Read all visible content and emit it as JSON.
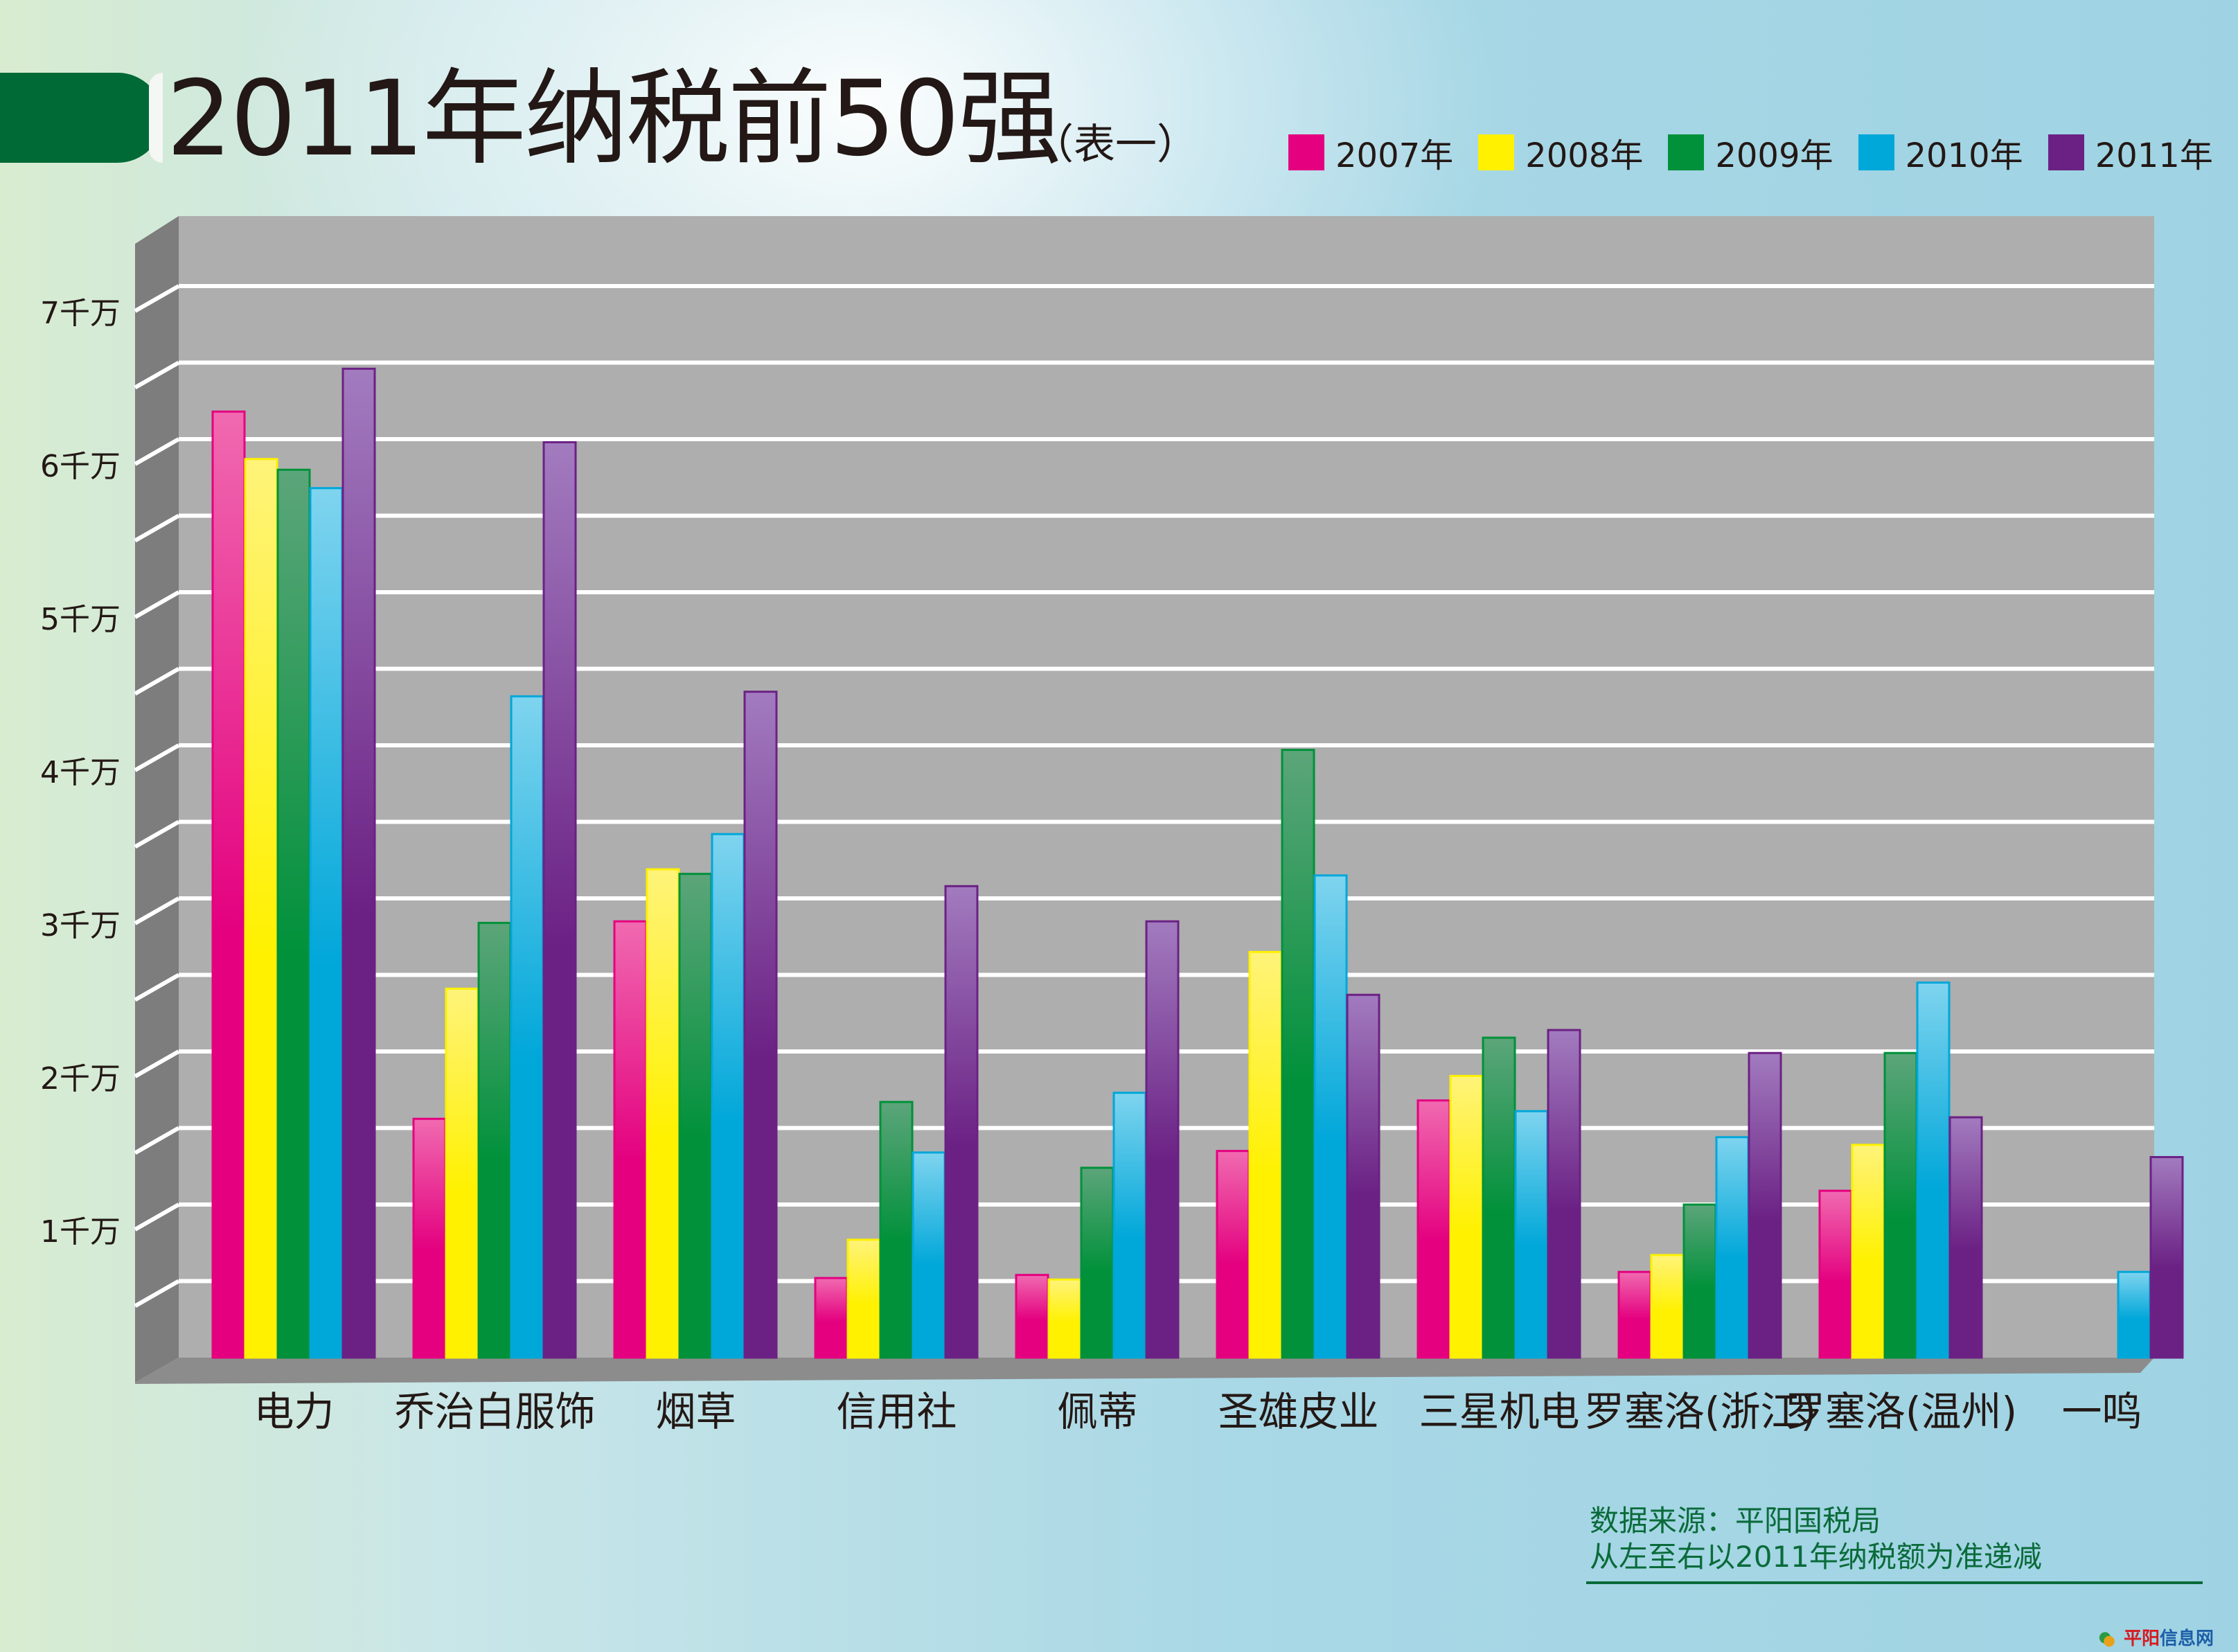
{
  "title": "2011年纳税前50强",
  "subtitle": "（表一）",
  "source_line1": "数据来源：平阳国税局",
  "source_line2": "从左至右以2011年纳税额为准递减",
  "watermark": {
    "part1": "平阳",
    "part2": "信息网"
  },
  "chart_data": {
    "type": "bar",
    "title": "2011年纳税前50强",
    "subtitle": "（表一）",
    "xlabel": "",
    "ylabel": "",
    "ylim": [
      0,
      7.5
    ],
    "yticks": [
      1,
      2,
      3,
      4,
      5,
      6,
      7
    ],
    "ytick_labels": [
      "1千万",
      "2千万",
      "3千万",
      "4千万",
      "5千万",
      "6千万",
      "7千万"
    ],
    "grid": true,
    "legend_position": "top-right",
    "categories": [
      "电力",
      "乔治白服饰",
      "烟草",
      "信用社",
      "佩蒂",
      "圣雄皮业",
      "三星机电",
      "罗塞洛(浙江)",
      "罗塞洛(温州)",
      "一鸣"
    ],
    "series": [
      {
        "name": "2007年",
        "color": "#e4007f",
        "values": [
          6.18,
          1.56,
          2.85,
          0.52,
          0.54,
          1.35,
          1.68,
          0.56,
          1.09,
          null
        ]
      },
      {
        "name": "2008年",
        "color": "#fff100",
        "values": [
          5.87,
          2.41,
          3.19,
          0.77,
          0.51,
          2.65,
          1.84,
          0.67,
          1.39,
          null
        ]
      },
      {
        "name": "2009年",
        "color": "#00913a",
        "values": [
          5.8,
          2.84,
          3.16,
          1.67,
          1.24,
          3.97,
          2.09,
          1.0,
          1.99,
          null
        ]
      },
      {
        "name": "2010年",
        "color": "#00a7d9",
        "values": [
          5.68,
          4.32,
          3.42,
          1.34,
          1.73,
          3.15,
          1.61,
          1.44,
          2.45,
          0.56
        ]
      },
      {
        "name": "2011年",
        "color": "#6b2184",
        "values": [
          6.46,
          5.98,
          4.35,
          3.08,
          2.85,
          2.37,
          2.14,
          1.99,
          1.57,
          1.31
        ]
      }
    ]
  }
}
